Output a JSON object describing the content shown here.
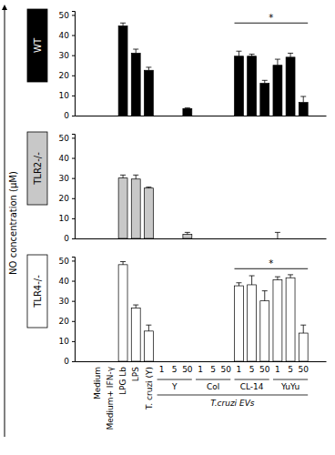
{
  "chart_data": [
    {
      "type": "bar",
      "title": "WT",
      "y_label": "NO concentration (µM)",
      "categories": [
        "Medium",
        "Medium+ IFN-γ",
        "LPG Lb",
        "LPS",
        "T. cruzi (Y)",
        "1",
        "5",
        "50",
        "1",
        "5",
        "50",
        "1",
        "5",
        "50",
        "1",
        "5",
        "50"
      ],
      "values": [
        0,
        0,
        44.5,
        31,
        22.5,
        0,
        0,
        3.5,
        0,
        0,
        0,
        29.5,
        29.5,
        16,
        25,
        29,
        6.5
      ],
      "errors": [
        0,
        0,
        1.5,
        2,
        1.5,
        0,
        0,
        0.3,
        0,
        0,
        0,
        2.5,
        1,
        1.5,
        3,
        2,
        3
      ],
      "color": "#000000",
      "ylim": [
        0,
        52
      ],
      "yticks": [
        0,
        10,
        20,
        30,
        40,
        50
      ],
      "significance": {
        "label": "*",
        "groups": [
          "CL-14",
          "YuYu"
        ],
        "y": 46
      }
    },
    {
      "type": "bar",
      "title": "TLR2-/-",
      "categories": [
        "Medium",
        "Medium+ IFN-γ",
        "LPG Lb",
        "LPS",
        "T. cruzi (Y)",
        "1",
        "5",
        "50",
        "1",
        "5",
        "50",
        "1",
        "5",
        "50",
        "1",
        "5",
        "50"
      ],
      "values": [
        0,
        0,
        30,
        29.5,
        25,
        0,
        0,
        2,
        0,
        0,
        0,
        0,
        0,
        0,
        0,
        0,
        0
      ],
      "errors": [
        0,
        0,
        1.5,
        2,
        0.5,
        0,
        0,
        1,
        0,
        0,
        0,
        0,
        0,
        0,
        3,
        0,
        0
      ],
      "color": "#c8c8c8",
      "ylim": [
        0,
        52
      ],
      "yticks": [
        0,
        10,
        20,
        30,
        40,
        50
      ]
    },
    {
      "type": "bar",
      "title": "TLR4-/-",
      "categories": [
        "Medium",
        "Medium+ IFN-γ",
        "LPG Lb",
        "LPS",
        "T. cruzi (Y)",
        "1",
        "5",
        "50",
        "1",
        "5",
        "50",
        "1",
        "5",
        "50",
        "1",
        "5",
        "50"
      ],
      "category_groups": [
        null,
        null,
        null,
        null,
        null,
        "Y",
        "Y",
        "Y",
        "Col",
        "Col",
        "Col",
        "CL-14",
        "CL-14",
        "CL-14",
        "YuYu",
        "YuYu",
        "YuYu"
      ],
      "group_title": "T.cruzi EVs",
      "values": [
        0,
        0,
        48,
        26.5,
        15,
        0,
        0,
        0,
        0,
        0,
        0,
        37.5,
        38,
        30,
        40.5,
        41.5,
        14
      ],
      "errors": [
        0,
        0,
        1.5,
        1.5,
        3,
        0,
        0,
        0,
        0,
        0,
        0,
        1.5,
        4.5,
        5,
        1.5,
        1.5,
        4
      ],
      "color": "#ffffff",
      "ylim": [
        0,
        52
      ],
      "yticks": [
        0,
        10,
        20,
        30,
        40,
        50
      ],
      "significance": {
        "label": "*",
        "groups": [
          "CL-14",
          "YuYu"
        ],
        "y": 46
      }
    }
  ]
}
